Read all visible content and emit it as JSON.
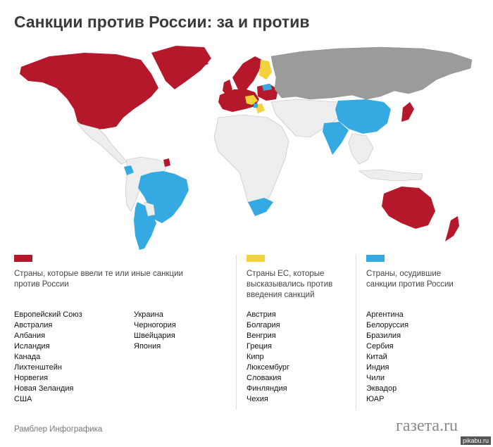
{
  "title": "Санкции против России: за и против",
  "colors": {
    "sanctions": "#b5182a",
    "eu_against": "#f2d33c",
    "condemned": "#35a9e1",
    "russia": "#9b9b9b",
    "neutral": "#eeeeee"
  },
  "legend": {
    "sanctions": {
      "label": "Страны, которые ввели те или иные санкции против России",
      "col1": [
        "Европейский Союз",
        "Австралия",
        "Албания",
        "Исландия",
        "Канада",
        "Лихтенштейн",
        "Норвегия",
        "Новая Зеландия",
        "США"
      ],
      "col2": [
        "Украина",
        "Черногория",
        "Швейцария",
        "Япония"
      ]
    },
    "eu_against": {
      "label": "Страны ЕС, которые высказывались против введения санкций",
      "items": [
        "Австрия",
        "Болгария",
        "Венгрия",
        "Греция",
        "Кипр",
        "Люксембург",
        "Словакия",
        "Финляндия",
        "Чехия"
      ]
    },
    "condemned": {
      "label": "Страны, осудившие санкции против России",
      "items": [
        "Аргентина",
        "Белоруссия",
        "Бразилия",
        "Сербия",
        "Китай",
        "Индия",
        "Чили",
        "Эквадор",
        "ЮАР"
      ]
    }
  },
  "footer": {
    "source": "Рамблер Инфографика",
    "logo": "газета.ru",
    "watermark": "pikabu.ru"
  }
}
